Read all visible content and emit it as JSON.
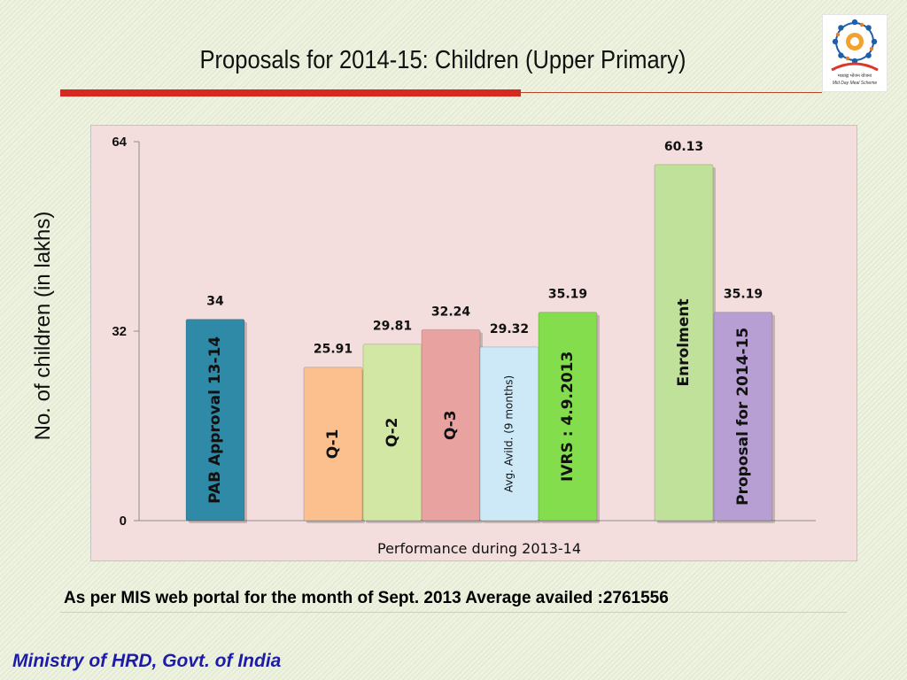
{
  "slide": {
    "title": "Proposals for 2014-15: Children (Upper Primary)",
    "note": "As per MIS web portal for the month of Sept. 2013 Average availed :2761556",
    "footer": "Ministry of HRD, Govt. of India"
  },
  "logo": {
    "icon": "mid-day-meal-logo",
    "hindi_text": "मध्याह्न भोजन योजना",
    "english_text": "Mid Day Meal Scheme"
  },
  "chart_data": {
    "type": "bar",
    "xlabel": "Performance during 2013-14",
    "ylabel": "No. of children (in lakhs)",
    "ylim": [
      0,
      64
    ],
    "yticks": [
      0,
      32,
      64
    ],
    "categories": [
      "PAB Approval 13-14",
      "Q-1",
      "Q-2",
      "Q-3",
      "Avg. Avild. (9 months)",
      "IVRS : 4.9.2013",
      "Enrolment",
      "Proposal for 2014-15"
    ],
    "values": [
      34,
      25.91,
      29.81,
      32.24,
      29.32,
      35.19,
      60.13,
      35.19
    ],
    "value_labels": [
      "34",
      "25.91",
      "29.81",
      "32.24",
      "29.32",
      "35.19",
      "60.13",
      "35.19"
    ],
    "colors": [
      "#2f8aa8",
      "#fbc08d",
      "#d3e7a4",
      "#e8a2a0",
      "#cde9f8",
      "#84dd4c",
      "#bfe19a",
      "#b89fd3"
    ],
    "grid": false,
    "legend": "none"
  }
}
